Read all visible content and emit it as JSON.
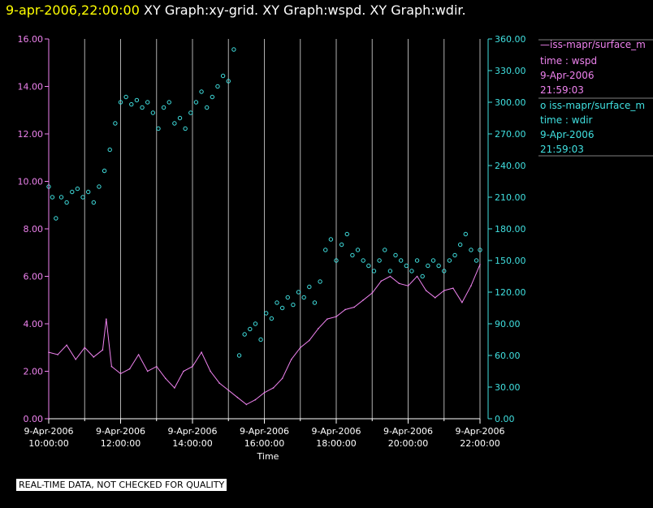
{
  "header": {
    "timestamp": "9-apr-2006,22:00:00",
    "graphs": "XY Graph:xy-grid.  XY Graph:wspd.  XY Graph:wdir."
  },
  "footer": {
    "disclaimer": "REAL-TIME DATA, NOT CHECKED FOR QUALITY"
  },
  "legend": {
    "wspd": {
      "symbol": "—",
      "name": "iss-mapr/surface_m",
      "field": "time : wspd",
      "date": "9-Apr-2006",
      "time": "21:59:03",
      "color": "#ee82ee"
    },
    "wdir": {
      "symbol": "o",
      "name": "iss-mapr/surface_m",
      "field": "time : wdir",
      "date": "9-Apr-2006",
      "time": "21:59:03",
      "color": "#40e0e0"
    }
  },
  "chart_data": {
    "type": "line",
    "xlabel": "Time",
    "x_ticks": [
      {
        "hour": 10,
        "date": "9-Apr-2006",
        "time": "10:00:00"
      },
      {
        "hour": 12,
        "date": "9-Apr-2006",
        "time": "12:00:00"
      },
      {
        "hour": 14,
        "date": "9-Apr-2006",
        "time": "14:00:00"
      },
      {
        "hour": 16,
        "date": "9-Apr-2006",
        "time": "16:00:00"
      },
      {
        "hour": 18,
        "date": "9-Apr-2006",
        "time": "18:00:00"
      },
      {
        "hour": 20,
        "date": "9-Apr-2006",
        "time": "20:00:00"
      },
      {
        "hour": 22,
        "date": "9-Apr-2006",
        "time": "22:00:00"
      }
    ],
    "xlim": [
      10,
      22
    ],
    "minor_hours": [
      11,
      13,
      15,
      17,
      19,
      21
    ],
    "y_left": {
      "lim": [
        0,
        16
      ],
      "ticks": [
        "0.00",
        "2.00",
        "4.00",
        "6.00",
        "8.00",
        "10.00",
        "12.00",
        "14.00",
        "16.00"
      ],
      "color": "#ee82ee"
    },
    "y_right": {
      "lim": [
        0,
        360
      ],
      "ticks": [
        "0.00",
        "30.00",
        "60.00",
        "90.00",
        "120.00",
        "150.00",
        "180.00",
        "210.00",
        "240.00",
        "270.00",
        "300.00",
        "330.00",
        "360.00"
      ],
      "color": "#40e0e0"
    },
    "series": [
      {
        "name": "wspd",
        "axis": "left",
        "style": "line",
        "color": "#ee82ee",
        "points": [
          [
            10.0,
            2.8
          ],
          [
            10.25,
            2.7
          ],
          [
            10.5,
            3.1
          ],
          [
            10.75,
            2.5
          ],
          [
            11.0,
            3.0
          ],
          [
            11.25,
            2.6
          ],
          [
            11.5,
            2.9
          ],
          [
            11.6,
            4.2
          ],
          [
            11.75,
            2.2
          ],
          [
            12.0,
            1.9
          ],
          [
            12.25,
            2.1
          ],
          [
            12.5,
            2.7
          ],
          [
            12.75,
            2.0
          ],
          [
            13.0,
            2.2
          ],
          [
            13.25,
            1.7
          ],
          [
            13.5,
            1.3
          ],
          [
            13.75,
            2.0
          ],
          [
            14.0,
            2.2
          ],
          [
            14.25,
            2.8
          ],
          [
            14.5,
            2.0
          ],
          [
            14.75,
            1.5
          ],
          [
            15.0,
            1.2
          ],
          [
            15.25,
            0.9
          ],
          [
            15.5,
            0.6
          ],
          [
            15.75,
            0.8
          ],
          [
            16.0,
            1.1
          ],
          [
            16.25,
            1.3
          ],
          [
            16.5,
            1.7
          ],
          [
            16.75,
            2.5
          ],
          [
            17.0,
            3.0
          ],
          [
            17.25,
            3.3
          ],
          [
            17.5,
            3.8
          ],
          [
            17.75,
            4.2
          ],
          [
            18.0,
            4.3
          ],
          [
            18.25,
            4.6
          ],
          [
            18.5,
            4.7
          ],
          [
            18.75,
            5.0
          ],
          [
            19.0,
            5.3
          ],
          [
            19.25,
            5.8
          ],
          [
            19.5,
            6.0
          ],
          [
            19.75,
            5.7
          ],
          [
            20.0,
            5.6
          ],
          [
            20.25,
            6.0
          ],
          [
            20.5,
            5.4
          ],
          [
            20.75,
            5.1
          ],
          [
            21.0,
            5.4
          ],
          [
            21.25,
            5.5
          ],
          [
            21.5,
            4.9
          ],
          [
            21.75,
            5.6
          ],
          [
            22.0,
            6.5
          ]
        ]
      },
      {
        "name": "wdir",
        "axis": "right",
        "style": "marker",
        "color": "#40e0e0",
        "points": [
          [
            10.0,
            220
          ],
          [
            10.1,
            210
          ],
          [
            10.2,
            190
          ],
          [
            10.35,
            210
          ],
          [
            10.5,
            205
          ],
          [
            10.65,
            215
          ],
          [
            10.8,
            218
          ],
          [
            10.95,
            210
          ],
          [
            11.1,
            215
          ],
          [
            11.25,
            205
          ],
          [
            11.4,
            220
          ],
          [
            11.55,
            235
          ],
          [
            11.7,
            255
          ],
          [
            11.85,
            280
          ],
          [
            12.0,
            300
          ],
          [
            12.15,
            305
          ],
          [
            12.3,
            298
          ],
          [
            12.45,
            302
          ],
          [
            12.6,
            295
          ],
          [
            12.75,
            300
          ],
          [
            12.9,
            290
          ],
          [
            13.05,
            275
          ],
          [
            13.2,
            295
          ],
          [
            13.35,
            300
          ],
          [
            13.5,
            280
          ],
          [
            13.65,
            285
          ],
          [
            13.8,
            275
          ],
          [
            13.95,
            290
          ],
          [
            14.1,
            300
          ],
          [
            14.25,
            310
          ],
          [
            14.4,
            295
          ],
          [
            14.55,
            305
          ],
          [
            14.7,
            315
          ],
          [
            14.85,
            325
          ],
          [
            15.0,
            320
          ],
          [
            15.15,
            350
          ],
          [
            15.3,
            60
          ],
          [
            15.45,
            80
          ],
          [
            15.6,
            85
          ],
          [
            15.75,
            90
          ],
          [
            15.9,
            75
          ],
          [
            16.05,
            100
          ],
          [
            16.2,
            95
          ],
          [
            16.35,
            110
          ],
          [
            16.5,
            105
          ],
          [
            16.65,
            115
          ],
          [
            16.8,
            108
          ],
          [
            16.95,
            120
          ],
          [
            17.1,
            115
          ],
          [
            17.25,
            125
          ],
          [
            17.4,
            110
          ],
          [
            17.55,
            130
          ],
          [
            17.7,
            160
          ],
          [
            17.85,
            170
          ],
          [
            18.0,
            150
          ],
          [
            18.15,
            165
          ],
          [
            18.3,
            175
          ],
          [
            18.45,
            155
          ],
          [
            18.6,
            160
          ],
          [
            18.75,
            150
          ],
          [
            18.9,
            145
          ],
          [
            19.05,
            140
          ],
          [
            19.2,
            150
          ],
          [
            19.35,
            160
          ],
          [
            19.5,
            140
          ],
          [
            19.65,
            155
          ],
          [
            19.8,
            150
          ],
          [
            19.95,
            145
          ],
          [
            20.1,
            140
          ],
          [
            20.25,
            150
          ],
          [
            20.4,
            135
          ],
          [
            20.55,
            145
          ],
          [
            20.7,
            150
          ],
          [
            20.85,
            145
          ],
          [
            21.0,
            140
          ],
          [
            21.15,
            150
          ],
          [
            21.3,
            155
          ],
          [
            21.45,
            165
          ],
          [
            21.6,
            175
          ],
          [
            21.75,
            160
          ],
          [
            21.9,
            150
          ],
          [
            22.0,
            160
          ]
        ]
      }
    ]
  }
}
